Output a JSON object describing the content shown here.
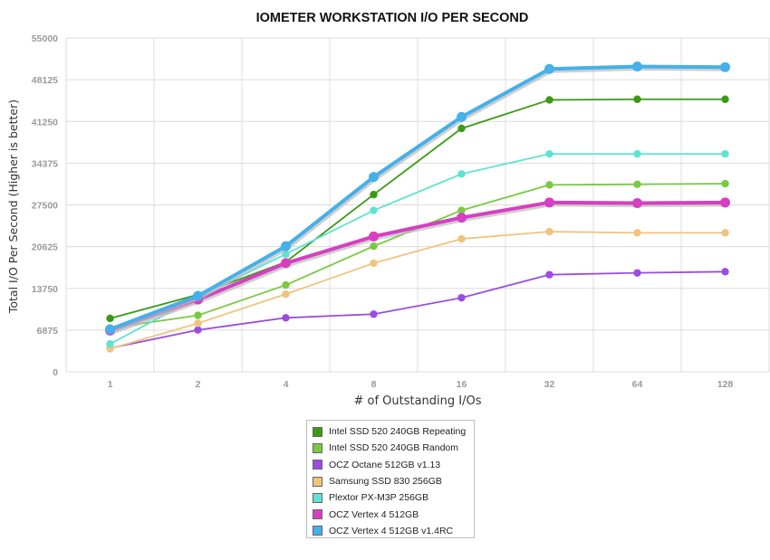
{
  "chart_data": {
    "type": "line",
    "title": "IOMETER WORKSTATION I/O PER SECOND",
    "xlabel": "# of Outstanding I/Os",
    "ylabel": "Total I/O Per Second (Higher is better)",
    "categories": [
      "1",
      "2",
      "4",
      "8",
      "16",
      "32",
      "64",
      "128"
    ],
    "yticks": [
      0,
      6875,
      13750,
      20625,
      27500,
      34375,
      41250,
      48125,
      55000
    ],
    "ylim": [
      0,
      55000
    ],
    "grid": true,
    "legend_position": "bottom",
    "series": [
      {
        "name": "Intel SSD 520 240GB Repeating",
        "color": "#3a9a14",
        "values": [
          8800,
          12700,
          18100,
          29200,
          40100,
          44800,
          44900,
          44900
        ]
      },
      {
        "name": "Intel SSD 520 240GB Random",
        "color": "#7ac943",
        "values": [
          7200,
          9300,
          14300,
          20700,
          26600,
          30800,
          30900,
          31000
        ]
      },
      {
        "name": "OCZ Octane 512GB v1.13",
        "color": "#9a4de0",
        "values": [
          3900,
          6900,
          8900,
          9500,
          12200,
          16000,
          16300,
          16500
        ]
      },
      {
        "name": "Samsung SSD 830 256GB",
        "color": "#f0c47e",
        "values": [
          3800,
          8000,
          12800,
          17900,
          21900,
          23100,
          22900,
          22900
        ]
      },
      {
        "name": "Plextor PX-M3P 256GB",
        "color": "#5ee3d2",
        "values": [
          4600,
          12300,
          19400,
          26600,
          32600,
          35900,
          35900,
          35900
        ]
      },
      {
        "name": "OCZ Vertex 4 512GB",
        "color": "#d63fc2",
        "values": [
          6800,
          11900,
          17900,
          22300,
          25400,
          27900,
          27800,
          27900
        ]
      },
      {
        "name": "OCZ Vertex 4 512GB v1.4RC",
        "color": "#45b0ea",
        "values": [
          7000,
          12500,
          20700,
          32100,
          42000,
          49900,
          50300,
          50200
        ]
      }
    ]
  }
}
